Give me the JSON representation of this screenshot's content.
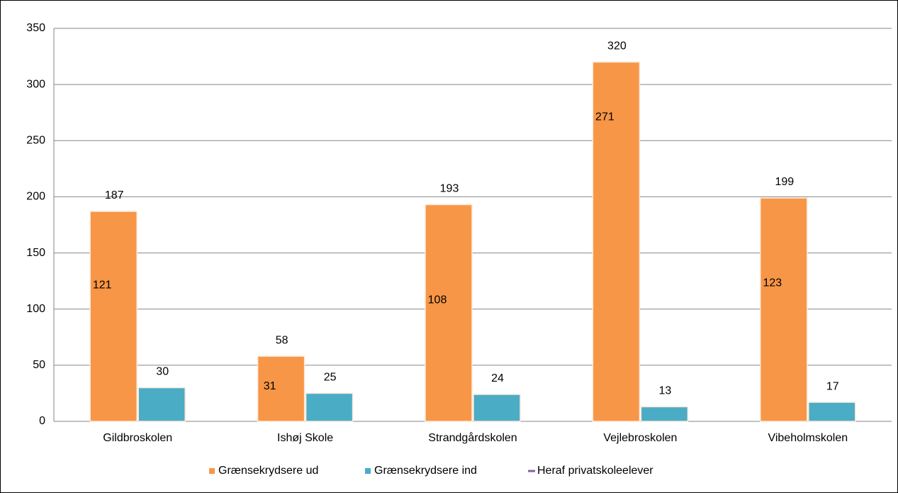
{
  "chart_data": {
    "type": "bar",
    "categories": [
      "Gildbroskolen",
      "Ishøj Skole",
      "Strandgårdskolen",
      "Vejlebroskolen",
      "Vibeholmskolen"
    ],
    "series": [
      {
        "name": "Grænsekrydsere ud",
        "color": "#f79646",
        "values": [
          187,
          58,
          193,
          320,
          199
        ]
      },
      {
        "name": "Grænsekrydsere ind",
        "color": "#4bacc6",
        "values": [
          30,
          25,
          24,
          13,
          17
        ]
      },
      {
        "name": "Heraf privatskoleelever",
        "color": "#8064a2",
        "type": "line",
        "values": [
          121,
          31,
          108,
          271,
          123
        ]
      }
    ],
    "ylim": [
      0,
      350
    ],
    "yticks": [
      0,
      50,
      100,
      150,
      200,
      250,
      300,
      350
    ],
    "grid": true,
    "legend": "bottom"
  }
}
